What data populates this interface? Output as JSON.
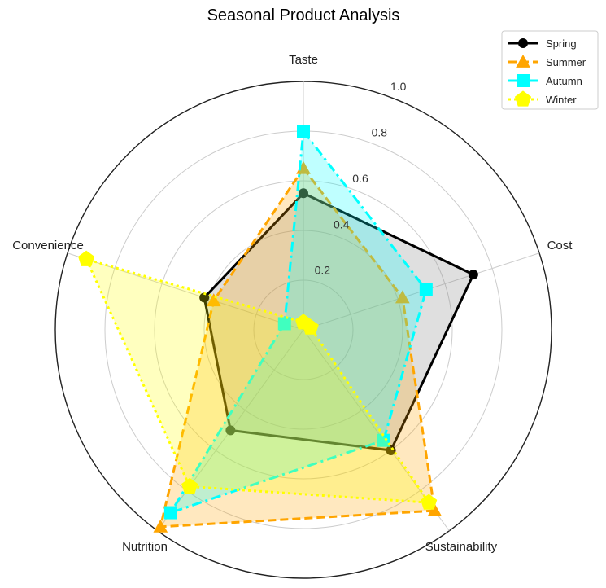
{
  "chart_data": {
    "type": "radar",
    "title": "Seasonal Product Analysis",
    "categories": [
      "Taste",
      "Cost",
      "Sustainability",
      "Nutrition",
      "Convenience"
    ],
    "radial_ticks": [
      "0.2",
      "0.4",
      "0.6",
      "0.8",
      "1.0"
    ],
    "radial_tick_values": [
      0.2,
      0.4,
      0.6,
      0.8,
      1.0
    ],
    "rlim": [
      0,
      1.0
    ],
    "grid": true,
    "legend_position": "top-right",
    "series": [
      {
        "name": "Spring",
        "values": [
          0.55,
          0.72,
          0.6,
          0.5,
          0.42
        ],
        "color": "#000000",
        "fill": "#808080",
        "linestyle": "solid",
        "marker": "circle"
      },
      {
        "name": "Summer",
        "values": [
          0.65,
          0.42,
          0.9,
          0.98,
          0.38
        ],
        "color": "#ffa500",
        "fill": "#ffa500",
        "linestyle": "dashed",
        "marker": "triangle"
      },
      {
        "name": "Autumn",
        "values": [
          0.8,
          0.52,
          0.55,
          0.91,
          0.08
        ],
        "color": "#00ffff",
        "fill": "#00ffff",
        "linestyle": "dashdot",
        "marker": "square"
      },
      {
        "name": "Winter",
        "values": [
          0.03,
          0.03,
          0.86,
          0.78,
          0.92
        ],
        "color": "#ffff00",
        "fill": "#ffff00",
        "linestyle": "dotted",
        "marker": "pentagon"
      }
    ]
  }
}
